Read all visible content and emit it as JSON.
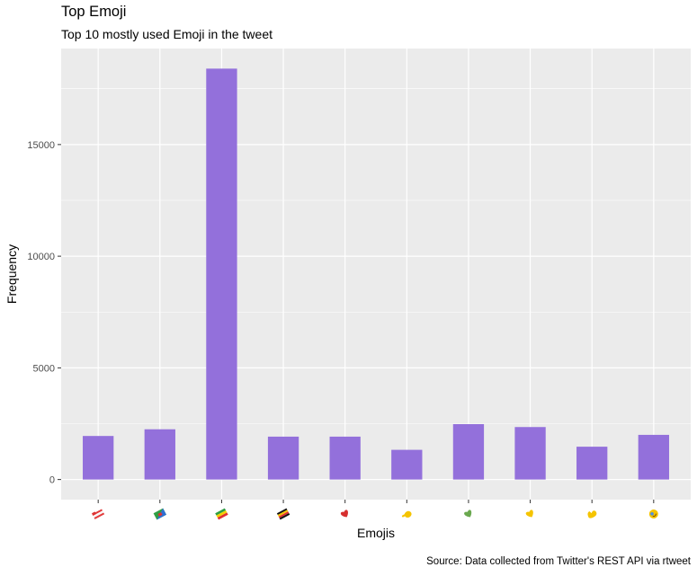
{
  "header": {
    "title": "Top Emoji",
    "subtitle": "Top 10 mostly used Emoji in the tweet",
    "caption": "Source: Data collected from Twitter's REST API via rtweet"
  },
  "colors": {
    "bar": "#9370DB",
    "panel": "#EBEBEB",
    "grid_major": "#FFFFFF",
    "tick_text": "#4D4D4D"
  },
  "chart_data": {
    "type": "bar",
    "title": "Top Emoji",
    "subtitle": "Top 10 mostly used Emoji in the tweet",
    "xlabel": "Emojis",
    "ylabel": "Frequency",
    "categories": [
      {
        "glyph": "flag-stripes",
        "value": 1950
      },
      {
        "glyph": "flag-green-blue-red",
        "value": 2250
      },
      {
        "glyph": "flag-green-yellow-red",
        "value": 18400
      },
      {
        "glyph": "flag-black-yellow-red",
        "value": 1920
      },
      {
        "glyph": "red-heart",
        "value": 1920
      },
      {
        "glyph": "yellow-pointing-hand",
        "value": 1330
      },
      {
        "glyph": "green-heart",
        "value": 2480
      },
      {
        "glyph": "yellow-heart",
        "value": 2350
      },
      {
        "glyph": "yellow-muscle",
        "value": 1470
      },
      {
        "glyph": "rolling-laughing-face",
        "value": 2000
      }
    ],
    "yticks": [
      0,
      5000,
      10000,
      15000
    ],
    "ylim": [
      -900,
      19300
    ],
    "grid": true,
    "legend": "none"
  }
}
